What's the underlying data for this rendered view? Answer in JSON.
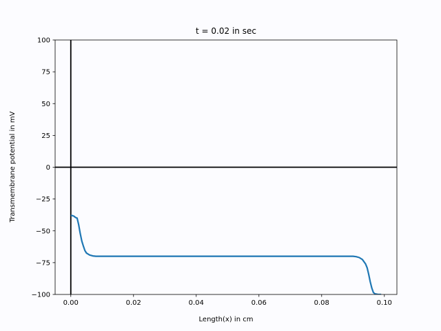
{
  "chart_data": {
    "type": "line",
    "title": "t = 0.02 in sec",
    "xlabel": "Length(x) in cm",
    "ylabel": "Transmembrane potential in mV",
    "xlim": [
      -0.005,
      0.104
    ],
    "ylim": [
      -100,
      100
    ],
    "xticks": [
      0.0,
      0.02,
      0.04,
      0.06,
      0.08,
      0.1
    ],
    "xtick_labels": [
      "0.00",
      "0.02",
      "0.04",
      "0.06",
      "0.08",
      "0.10"
    ],
    "yticks": [
      -100,
      -75,
      -50,
      -25,
      0,
      25,
      50,
      75,
      100
    ],
    "ytick_labels": [
      "−100",
      "−75",
      "−50",
      "−25",
      "0",
      "25",
      "50",
      "75",
      "100"
    ],
    "reference_lines": [
      {
        "orientation": "vertical",
        "value": 0
      },
      {
        "orientation": "horizontal",
        "value": 0
      }
    ],
    "grid": false,
    "series": [
      {
        "color": "#1f77b4",
        "x": [
          0.0,
          0.0005,
          0.001,
          0.0015,
          0.002,
          0.0025,
          0.003,
          0.0035,
          0.004,
          0.0045,
          0.005,
          0.006,
          0.007,
          0.008,
          0.01,
          0.02,
          0.04,
          0.06,
          0.08,
          0.088,
          0.09,
          0.091,
          0.092,
          0.093,
          0.094,
          0.0945,
          0.095,
          0.0955,
          0.096,
          0.0965,
          0.097,
          0.098,
          0.099
        ],
        "y": [
          -38,
          -38,
          -38.5,
          -39.5,
          -40,
          -45,
          -52,
          -58,
          -62,
          -65.5,
          -67.5,
          -69,
          -69.7,
          -70,
          -70,
          -70,
          -70,
          -70,
          -70,
          -70,
          -70,
          -70.3,
          -71,
          -72.5,
          -76,
          -79,
          -84,
          -90,
          -95,
          -98.5,
          -99.5,
          -100,
          -100
        ]
      }
    ]
  }
}
